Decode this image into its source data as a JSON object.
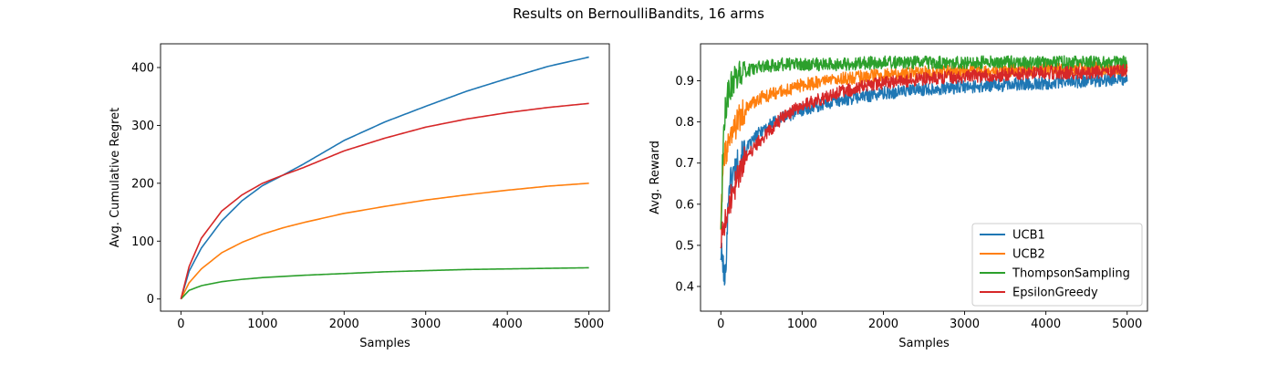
{
  "figure": {
    "suptitle": "Results on BernoulliBandits, 16 arms"
  },
  "chart_data": [
    {
      "type": "line",
      "title": "",
      "xlabel": "Samples",
      "ylabel": "Avg. Cumulative Regret",
      "xlim": [
        -250,
        5250
      ],
      "ylim": [
        -21,
        441
      ],
      "xticks": [
        0,
        1000,
        2000,
        3000,
        4000,
        5000
      ],
      "yticks": [
        0,
        100,
        200,
        300,
        400
      ],
      "grid": false,
      "legend": "none",
      "series": [
        {
          "name": "UCB1",
          "color": "#1f77b4",
          "x": [
            0,
            100,
            250,
            500,
            750,
            1000,
            1250,
            1500,
            2000,
            2500,
            3000,
            3500,
            4000,
            4500,
            5000
          ],
          "values": [
            0,
            48,
            88,
            135,
            170,
            196,
            214,
            233,
            274,
            306,
            333,
            359,
            381,
            402,
            418
          ]
        },
        {
          "name": "UCB2",
          "color": "#ff7f0e",
          "x": [
            0,
            100,
            250,
            500,
            750,
            1000,
            1250,
            1500,
            2000,
            2500,
            3000,
            3500,
            4000,
            4500,
            5000
          ],
          "values": [
            0,
            28,
            52,
            80,
            98,
            112,
            123,
            132,
            148,
            160,
            171,
            180,
            188,
            195,
            200
          ]
        },
        {
          "name": "ThompsonSampling",
          "color": "#2ca02c",
          "x": [
            0,
            100,
            250,
            500,
            750,
            1000,
            1500,
            2000,
            2500,
            3000,
            3500,
            4000,
            4500,
            5000
          ],
          "values": [
            0,
            15,
            23,
            30,
            34,
            37,
            41,
            44,
            47,
            49,
            51,
            52,
            53,
            54
          ]
        },
        {
          "name": "EpsilonGreedy",
          "color": "#d62728",
          "x": [
            0,
            100,
            250,
            500,
            750,
            1000,
            1250,
            1500,
            2000,
            2500,
            3000,
            3500,
            4000,
            4500,
            5000
          ],
          "values": [
            0,
            56,
            105,
            152,
            180,
            200,
            214,
            227,
            256,
            278,
            297,
            311,
            322,
            331,
            338
          ]
        }
      ]
    },
    {
      "type": "line",
      "title": "",
      "xlabel": "Samples",
      "ylabel": "Avg. Reward",
      "xlim": [
        -250,
        5250
      ],
      "ylim": [
        0.34,
        0.99
      ],
      "xticks": [
        0,
        1000,
        2000,
        3000,
        4000,
        5000
      ],
      "yticks": [
        0.4,
        0.5,
        0.6,
        0.7,
        0.8,
        0.9
      ],
      "grid": false,
      "legend": "lower-right",
      "series": [
        {
          "name": "UCB1",
          "color": "#1f77b4",
          "x": [
            0,
            25,
            50,
            100,
            200,
            300,
            500,
            750,
            1000,
            1500,
            2000,
            2500,
            3000,
            3500,
            4000,
            4500,
            5000
          ],
          "values": [
            0.48,
            0.46,
            0.4,
            0.65,
            0.7,
            0.73,
            0.78,
            0.81,
            0.83,
            0.855,
            0.87,
            0.88,
            0.885,
            0.89,
            0.895,
            0.9,
            0.905
          ]
        },
        {
          "name": "UCB2",
          "color": "#ff7f0e",
          "x": [
            0,
            25,
            50,
            100,
            200,
            300,
            500,
            750,
            1000,
            1500,
            2000,
            2500,
            3000,
            3500,
            4000,
            4500,
            5000
          ],
          "values": [
            0.55,
            0.68,
            0.72,
            0.74,
            0.8,
            0.83,
            0.86,
            0.875,
            0.89,
            0.905,
            0.915,
            0.92,
            0.925,
            0.925,
            0.93,
            0.93,
            0.93
          ]
        },
        {
          "name": "ThompsonSampling",
          "color": "#2ca02c",
          "x": [
            0,
            25,
            50,
            100,
            200,
            300,
            500,
            750,
            1000,
            1500,
            2000,
            2500,
            3000,
            3500,
            4000,
            4500,
            5000
          ],
          "values": [
            0.55,
            0.72,
            0.82,
            0.88,
            0.91,
            0.925,
            0.935,
            0.94,
            0.94,
            0.94,
            0.945,
            0.945,
            0.945,
            0.945,
            0.945,
            0.945,
            0.945
          ]
        },
        {
          "name": "EpsilonGreedy",
          "color": "#d62728",
          "x": [
            0,
            25,
            50,
            100,
            200,
            300,
            500,
            750,
            1000,
            1500,
            2000,
            2500,
            3000,
            3500,
            4000,
            4500,
            5000
          ],
          "values": [
            0.5,
            0.53,
            0.56,
            0.6,
            0.66,
            0.71,
            0.76,
            0.81,
            0.84,
            0.875,
            0.895,
            0.905,
            0.91,
            0.915,
            0.92,
            0.92,
            0.925
          ]
        }
      ]
    }
  ]
}
